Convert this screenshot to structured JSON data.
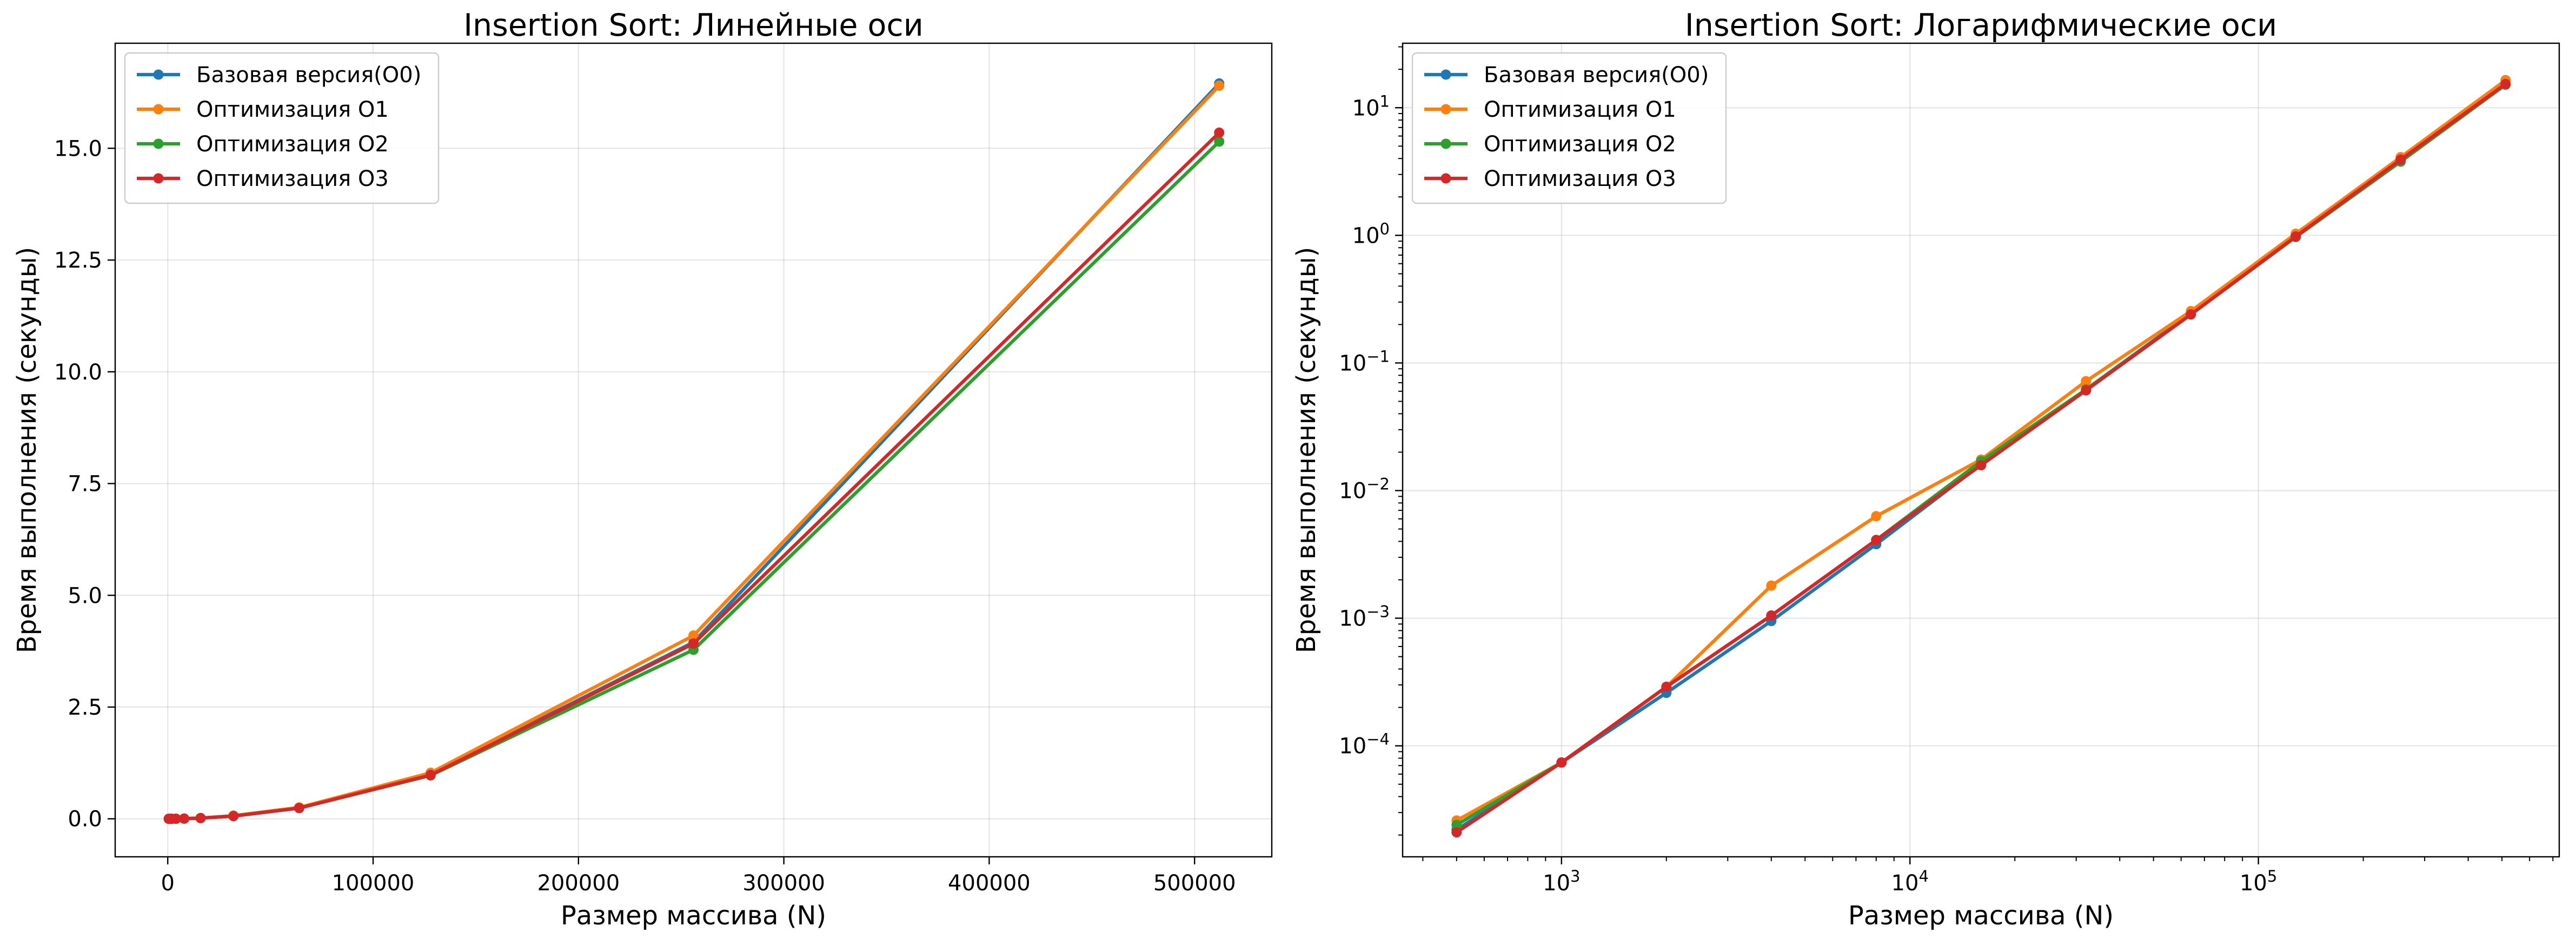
{
  "chart_data": [
    {
      "type": "line",
      "title": "Insertion Sort: Линейные оси",
      "xlabel": "Размер массива (N)",
      "ylabel": "Время выполнения (секунды)",
      "xscale": "linear",
      "yscale": "linear",
      "xlim": [
        -25600,
        537600
      ],
      "ylim": [
        -0.85,
        17.35
      ],
      "xticks": [
        0,
        100000,
        200000,
        300000,
        400000,
        500000
      ],
      "xtick_labels": [
        "0",
        "100000",
        "200000",
        "300000",
        "400000",
        "500000"
      ],
      "yticks": [
        0,
        2.5,
        5,
        7.5,
        10,
        12.5,
        15
      ],
      "ytick_labels": [
        "0.0",
        "2.5",
        "5.0",
        "7.5",
        "10.0",
        "12.5",
        "15.0"
      ],
      "grid": true,
      "legend_position": "top-left",
      "x": [
        500,
        1000,
        2000,
        4000,
        8000,
        16000,
        32000,
        64000,
        128000,
        256000,
        512000
      ],
      "series": [
        {
          "name": "Базовая версия(O0)",
          "color": "#1f77b4",
          "values": [
            2.2e-05,
            7.4e-05,
            0.00026,
            0.00095,
            0.0038,
            0.016,
            0.062,
            0.245,
            1.0,
            3.95,
            16.45
          ]
        },
        {
          "name": "Оптимизация O1",
          "color": "#ff7f0e",
          "values": [
            2.6e-05,
            7.4e-05,
            0.00029,
            0.0018,
            0.0063,
            0.0175,
            0.072,
            0.255,
            1.03,
            4.1,
            16.4
          ]
        },
        {
          "name": "Оптимизация O2",
          "color": "#2ca02c",
          "values": [
            2.4e-05,
            7.4e-05,
            0.00029,
            0.00105,
            0.0041,
            0.017,
            0.062,
            0.24,
            0.97,
            3.78,
            15.15
          ]
        },
        {
          "name": "Оптимизация O3",
          "color": "#d62728",
          "values": [
            2.1e-05,
            7.4e-05,
            0.00029,
            0.00105,
            0.0041,
            0.0158,
            0.061,
            0.24,
            0.98,
            3.92,
            15.35
          ]
        }
      ]
    },
    {
      "type": "line",
      "title": "Insertion Sort: Логарифмические оси",
      "xlabel": "Размер массива (N)",
      "ylabel": "Время выполнения (секунды)",
      "xscale": "log",
      "yscale": "log",
      "xlim": [
        350,
        730000
      ],
      "ylim": [
        1.35e-05,
        32
      ],
      "xticks": [
        1000,
        10000,
        100000
      ],
      "xtick_labels": [
        [
          "10",
          "3"
        ],
        [
          "10",
          "4"
        ],
        [
          "10",
          "5"
        ]
      ],
      "yticks": [
        0.0001,
        0.001,
        0.01,
        0.1,
        1,
        10
      ],
      "ytick_labels": [
        [
          "10",
          "−4"
        ],
        [
          "10",
          "−3"
        ],
        [
          "10",
          "−2"
        ],
        [
          "10",
          "−1"
        ],
        [
          "10",
          "0"
        ],
        [
          "10",
          "1"
        ]
      ],
      "grid": true,
      "legend_position": "top-left",
      "x": [
        500,
        1000,
        2000,
        4000,
        8000,
        16000,
        32000,
        64000,
        128000,
        256000,
        512000
      ],
      "series": [
        {
          "name": "Базовая версия(O0)",
          "color": "#1f77b4",
          "values": [
            2.2e-05,
            7.4e-05,
            0.00026,
            0.00095,
            0.0038,
            0.016,
            0.062,
            0.245,
            1.0,
            3.95,
            16.45
          ]
        },
        {
          "name": "Оптимизация O1",
          "color": "#ff7f0e",
          "values": [
            2.6e-05,
            7.4e-05,
            0.00029,
            0.0018,
            0.0063,
            0.0175,
            0.072,
            0.255,
            1.03,
            4.1,
            16.4
          ]
        },
        {
          "name": "Оптимизация O2",
          "color": "#2ca02c",
          "values": [
            2.4e-05,
            7.4e-05,
            0.00029,
            0.00105,
            0.0041,
            0.017,
            0.062,
            0.24,
            0.97,
            3.78,
            15.15
          ]
        },
        {
          "name": "Оптимизация O3",
          "color": "#d62728",
          "values": [
            2.1e-05,
            7.4e-05,
            0.00029,
            0.00105,
            0.0041,
            0.0158,
            0.061,
            0.24,
            0.98,
            3.92,
            15.35
          ]
        }
      ]
    }
  ]
}
